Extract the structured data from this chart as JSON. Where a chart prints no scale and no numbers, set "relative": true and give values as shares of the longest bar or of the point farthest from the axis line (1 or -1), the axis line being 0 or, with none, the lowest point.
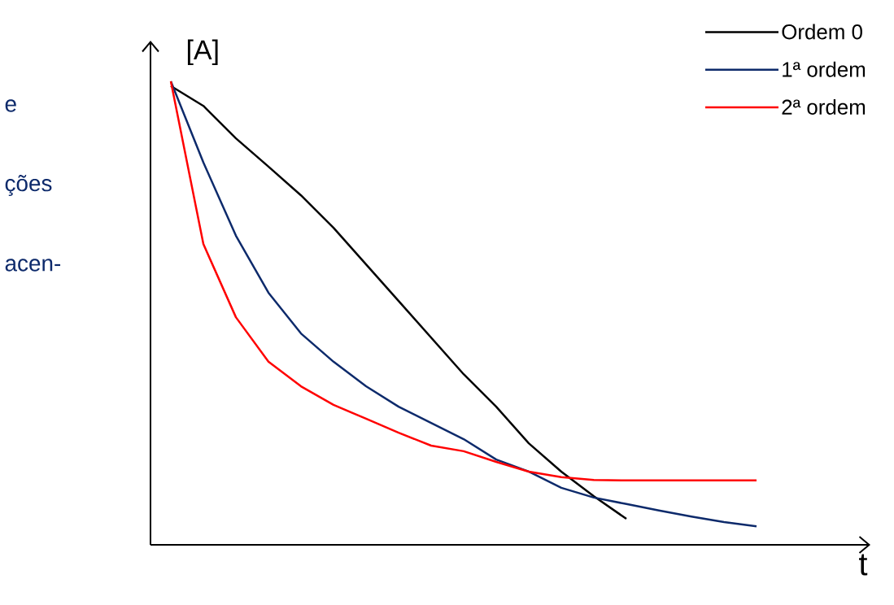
{
  "chart_data": {
    "type": "line",
    "relative": true,
    "xlabel": "t",
    "ylabel": "[A]",
    "legend": "top right",
    "marker": "none",
    "categories": [
      null,
      null,
      null,
      null,
      null,
      null,
      null,
      null,
      null,
      null,
      null,
      null,
      null,
      null,
      null,
      null,
      null,
      null,
      null
    ],
    "series": [
      {
        "name": "Ordem 0",
        "color": "#000000",
        "values": [
          0.99,
          0.947,
          0.877,
          0.816,
          0.754,
          0.684,
          0.605,
          0.526,
          0.447,
          0.368,
          0.298,
          0.219,
          0.158,
          0.105,
          0.056,
          null,
          null,
          null,
          null
        ]
      },
      {
        "name": "1ª ordem",
        "color": "#0d2a6b",
        "values": [
          1,
          0.825,
          0.667,
          0.544,
          0.456,
          0.395,
          0.342,
          0.298,
          0.263,
          0.228,
          0.184,
          0.158,
          0.123,
          0.102,
          0.088,
          0.074,
          0.061,
          0.049,
          0.04
        ]
      },
      {
        "name": "2ª ordem",
        "color": "#ff0000",
        "values": [
          1,
          0.649,
          0.491,
          0.395,
          0.342,
          0.302,
          0.272,
          0.242,
          0.214,
          0.202,
          0.179,
          0.158,
          0.146,
          0.14,
          0.139,
          0.139,
          0.139,
          0.139,
          0.139
        ]
      }
    ],
    "annotations": [
      "e",
      "ções",
      "acen-"
    ]
  }
}
